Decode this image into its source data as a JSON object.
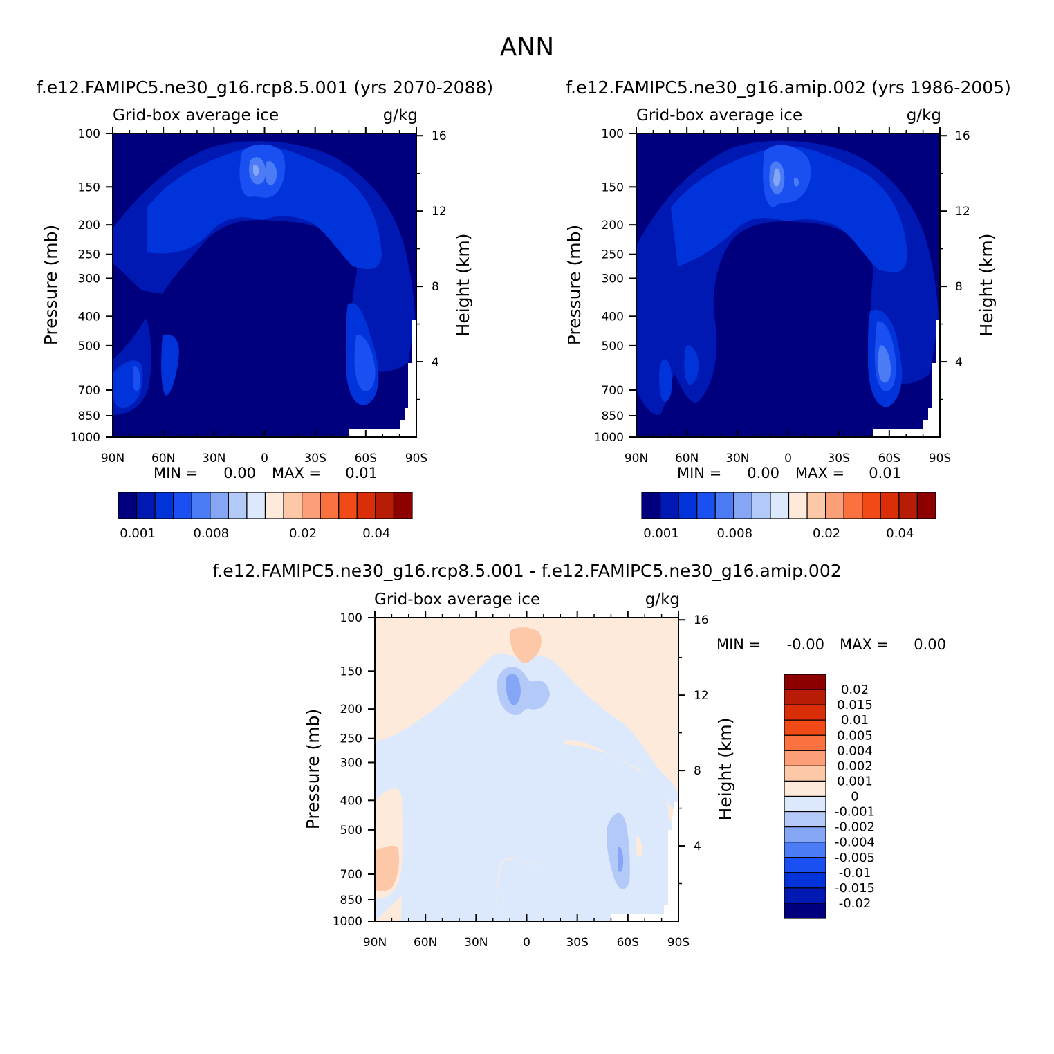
{
  "page_title": "ANN",
  "chart_data": [
    {
      "type": "contour",
      "panel": "top-left",
      "title": "f.e12.FAMIPC5.ne30_g16.rcp8.5.001 (yrs 2070-2088)",
      "left_label": "Grid-box average ice",
      "right_label": "g/kg",
      "ylabel": "Pressure (mb)",
      "ylabel_right": "Height (km)",
      "x_ticks": [
        "90N",
        "60N",
        "30N",
        "0",
        "30S",
        "60S",
        "90S"
      ],
      "x_values": [
        90,
        60,
        30,
        0,
        -30,
        -60,
        -90
      ],
      "y_ticks": [
        "100",
        "150",
        "200",
        "250",
        "300",
        "400",
        "500",
        "700",
        "850",
        "1000"
      ],
      "y_values": [
        100,
        150,
        200,
        250,
        300,
        400,
        500,
        700,
        850,
        1000
      ],
      "height_ticks": [
        "16",
        "12",
        "8",
        "4"
      ],
      "height_values": [
        16,
        12,
        8,
        4
      ],
      "ylim": [
        1000,
        100
      ],
      "xlim": [
        90,
        -90
      ],
      "min_text": "MIN =",
      "min_value": "0.00",
      "max_text": "MAX =",
      "max_value": "0.01",
      "colorbar": {
        "orientation": "horizontal",
        "colors": [
          "#00007f",
          "#0019b3",
          "#0033d9",
          "#1a4ff2",
          "#4b7cf5",
          "#84a6f5",
          "#b3c9f7",
          "#dce9fd",
          "#feeada",
          "#fdc8a8",
          "#fc9f78",
          "#fb7140",
          "#f24a17",
          "#d92e08",
          "#b81c06",
          "#8c0000"
        ],
        "labels": [
          "0.001",
          "0.008",
          "0.02",
          "0.04"
        ],
        "label_boundary_index": [
          0,
          4,
          9,
          13
        ]
      },
      "layers": [
        {
          "name": "band-0.001",
          "color": "#0019b3"
        },
        {
          "name": "band-0.002",
          "color": "#0033d9"
        },
        {
          "name": "band-0.004",
          "color": "#1a4ff2"
        },
        {
          "name": "band-0.005",
          "color": "#4b7cf5"
        },
        {
          "name": "band-0.008",
          "color": "#84a6f5"
        }
      ]
    },
    {
      "type": "contour",
      "panel": "top-right",
      "title": "f.e12.FAMIPC5.ne30_g16.amip.002 (yrs 1986-2005)",
      "left_label": "Grid-box average ice",
      "right_label": "g/kg",
      "ylabel": "Pressure (mb)",
      "ylabel_right": "Height (km)",
      "x_ticks": [
        "90N",
        "60N",
        "30N",
        "0",
        "30S",
        "60S",
        "90S"
      ],
      "x_values": [
        90,
        60,
        30,
        0,
        -30,
        -60,
        -90
      ],
      "y_ticks": [
        "100",
        "150",
        "200",
        "250",
        "300",
        "400",
        "500",
        "700",
        "850",
        "1000"
      ],
      "y_values": [
        100,
        150,
        200,
        250,
        300,
        400,
        500,
        700,
        850,
        1000
      ],
      "height_ticks": [
        "16",
        "12",
        "8",
        "4"
      ],
      "height_values": [
        16,
        12,
        8,
        4
      ],
      "ylim": [
        1000,
        100
      ],
      "xlim": [
        90,
        -90
      ],
      "min_text": "MIN =",
      "min_value": "0.00",
      "max_text": "MAX =",
      "max_value": "0.01",
      "colorbar": {
        "orientation": "horizontal",
        "colors": [
          "#00007f",
          "#0019b3",
          "#0033d9",
          "#1a4ff2",
          "#4b7cf5",
          "#84a6f5",
          "#b3c9f7",
          "#dce9fd",
          "#feeada",
          "#fdc8a8",
          "#fc9f78",
          "#fb7140",
          "#f24a17",
          "#d92e08",
          "#b81c06",
          "#8c0000"
        ],
        "labels": [
          "0.001",
          "0.008",
          "0.02",
          "0.04"
        ],
        "label_boundary_index": [
          0,
          4,
          9,
          13
        ]
      }
    },
    {
      "type": "contour",
      "panel": "bottom-difference",
      "title": "f.e12.FAMIPC5.ne30_g16.rcp8.5.001 - f.e12.FAMIPC5.ne30_g16.amip.002",
      "left_label": "Grid-box average ice",
      "right_label": "g/kg",
      "ylabel": "Pressure (mb)",
      "ylabel_right": "Height (km)",
      "x_ticks": [
        "90N",
        "60N",
        "30N",
        "0",
        "30S",
        "60S",
        "90S"
      ],
      "x_values": [
        90,
        60,
        30,
        0,
        -30,
        -60,
        -90
      ],
      "y_ticks": [
        "100",
        "150",
        "200",
        "250",
        "300",
        "400",
        "500",
        "700",
        "850",
        "1000"
      ],
      "y_values": [
        100,
        150,
        200,
        250,
        300,
        400,
        500,
        700,
        850,
        1000
      ],
      "height_ticks": [
        "16",
        "12",
        "8",
        "4"
      ],
      "height_values": [
        16,
        12,
        8,
        4
      ],
      "ylim": [
        1000,
        100
      ],
      "xlim": [
        90,
        -90
      ],
      "min_text": "MIN =",
      "min_value": "-0.00",
      "max_text": "MAX =",
      "max_value": "0.00",
      "colorbar": {
        "orientation": "vertical",
        "colors_top_to_bottom": [
          "#8c0000",
          "#b81c06",
          "#d92e08",
          "#f24a17",
          "#fb7140",
          "#fc9f78",
          "#fdc8a8",
          "#feeada",
          "#dce9fd",
          "#b3c9f7",
          "#84a6f5",
          "#4b7cf5",
          "#1a4ff2",
          "#0033d9",
          "#0019b3",
          "#00007f"
        ],
        "labels": [
          "0.02",
          "0.015",
          "0.01",
          "0.005",
          "0.004",
          "0.002",
          "0.001",
          "0",
          "-0.001",
          "-0.002",
          "-0.004",
          "-0.005",
          "-0.01",
          "-0.015",
          "-0.02"
        ]
      }
    }
  ]
}
